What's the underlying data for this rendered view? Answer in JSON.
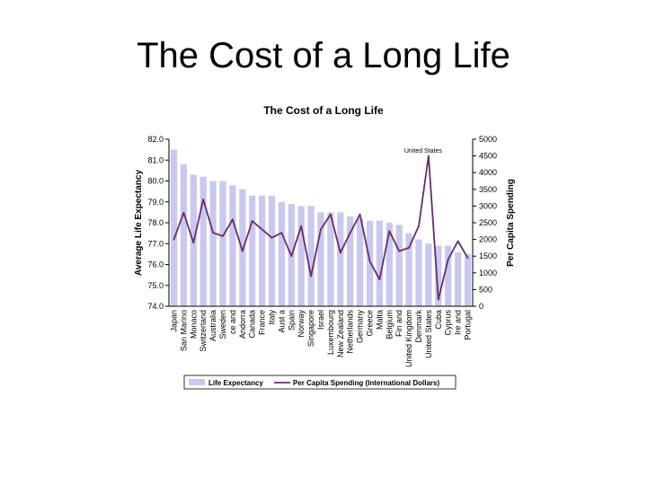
{
  "slide": {
    "title": "The Cost of a Long Life"
  },
  "chart_data": {
    "type": "bar",
    "title": "The Cost of a Long Life",
    "categories": [
      "Japan",
      "San Marino",
      "Monaco",
      "Switzerland",
      "Australia",
      "Sweden",
      "Iceland",
      "Andorra",
      "Canada",
      "France",
      "Italy",
      "Austria",
      "Spain",
      "Norway",
      "Singapore",
      "Israel",
      "Luxembourg",
      "New Zealand",
      "Netherlands",
      "Germany",
      "Greece",
      "Malta",
      "Belgium",
      "Finland",
      "United Kingdom",
      "Denmark",
      "United States",
      "Cuba",
      "Cyprus",
      "Ireland",
      "Portugal"
    ],
    "category_labels": [
      "Japan",
      "San Marino",
      "Monaco",
      "Switzerland",
      "Australia",
      "Sweden",
      "ce and",
      "Andorra",
      "Canada",
      "France",
      "Italy",
      "Aust a",
      "Spain",
      "Norway",
      "Singapore",
      "Israel",
      "Luxembourg",
      "New Zealand",
      "Netherlands",
      "Germany",
      "Greece",
      "Malta",
      "Belgium",
      "Fin and",
      "United Kingdom",
      "Denmark",
      "United States",
      "Cuba",
      "Cyprus",
      "Ire and",
      "Portugal"
    ],
    "series": [
      {
        "name": "Life Expectancy",
        "axis": "left",
        "kind": "bar",
        "color": "#c8c8f0",
        "values": [
          81.5,
          80.8,
          80.3,
          80.2,
          80.0,
          80.0,
          79.8,
          79.6,
          79.3,
          79.3,
          79.3,
          79.0,
          78.9,
          78.8,
          78.8,
          78.5,
          78.5,
          78.5,
          78.3,
          78.2,
          78.1,
          78.1,
          78.0,
          77.9,
          77.5,
          77.2,
          77.0,
          76.9,
          76.9,
          76.6,
          76.5
        ]
      },
      {
        "name": "Per Capita Spending (International Dollars)",
        "axis": "right",
        "kind": "line",
        "color": "#6b2b6b",
        "values": [
          2000,
          2800,
          1900,
          3200,
          2200,
          2100,
          2600,
          1650,
          2550,
          2300,
          2050,
          2200,
          1500,
          2400,
          900,
          2300,
          2750,
          1600,
          2200,
          2750,
          1350,
          800,
          2250,
          1650,
          1750,
          2400,
          4500,
          200,
          1400,
          1950,
          1450
        ]
      }
    ],
    "y_left": {
      "label": "Average Life Expectancy",
      "range": [
        74.0,
        82.0
      ],
      "ticks": [
        "82.0",
        "81.0",
        "80.0",
        "79.0",
        "78.0",
        "77.0",
        "76.0",
        "75.0",
        "74.0"
      ]
    },
    "y_right": {
      "label": "Per Capita Spending",
      "range": [
        0,
        5000
      ],
      "ticks": [
        "5000",
        "4500",
        "4000",
        "3500",
        "3000",
        "2500",
        "2000",
        "1500",
        "1000",
        "500",
        "0"
      ]
    },
    "annotations": [
      {
        "text": "United States",
        "category": "United States"
      }
    ],
    "legend": {
      "placement": "bottom",
      "items": [
        "Life Expectancy",
        "Per Capita Spending (International Dollars)"
      ]
    },
    "grid": false
  }
}
